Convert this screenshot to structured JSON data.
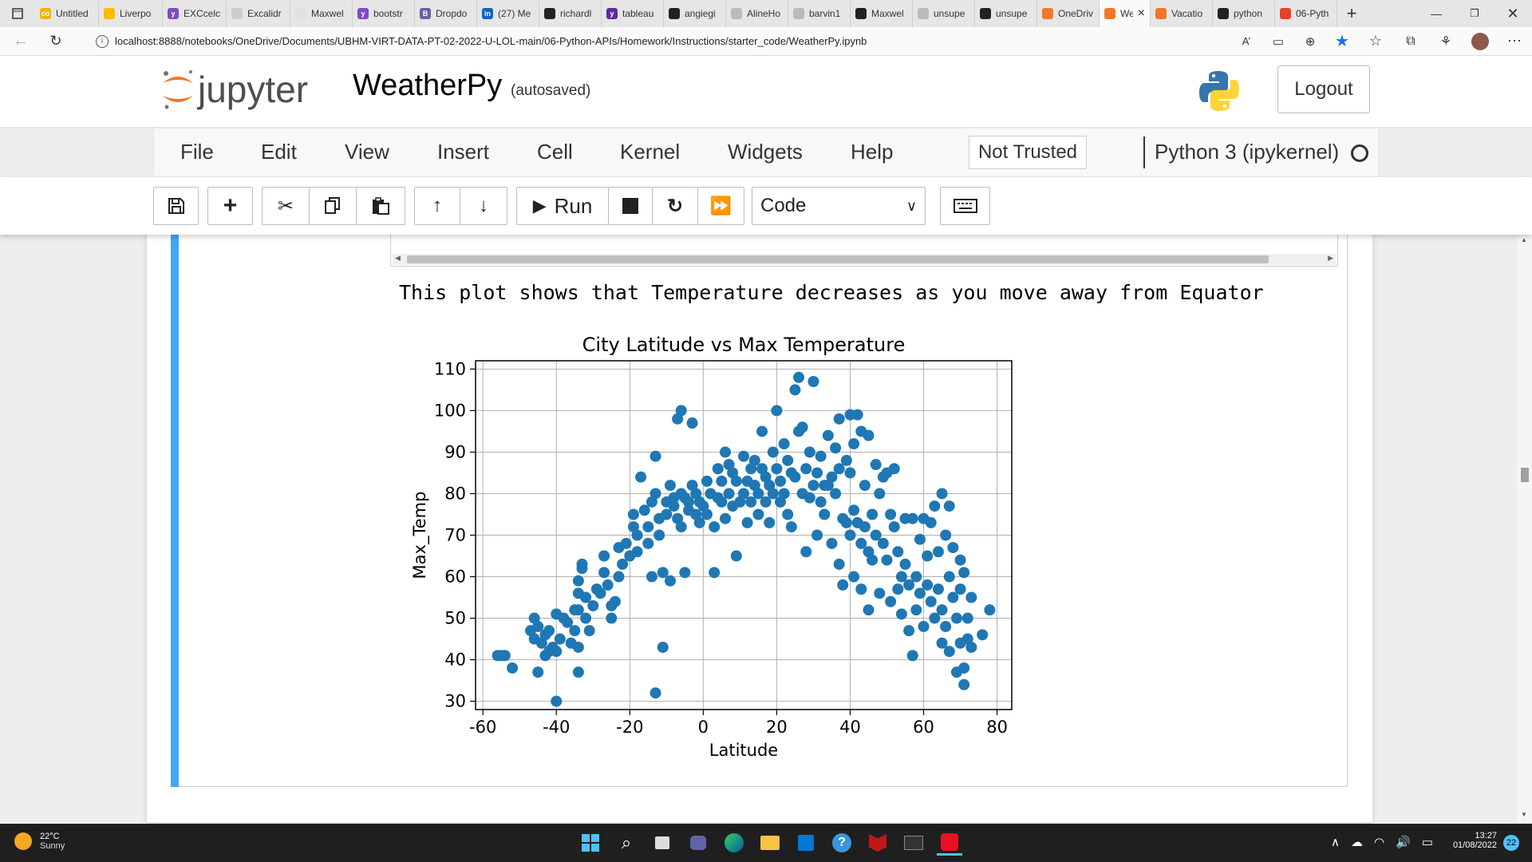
{
  "browser": {
    "tabs": [
      {
        "label": "Untitled",
        "color": "#f4b400",
        "glyph": "co"
      },
      {
        "label": "Liverpo",
        "color": "#ffb900",
        "glyph": ""
      },
      {
        "label": "EXCcelc",
        "color": "#7b4bc4",
        "glyph": "y"
      },
      {
        "label": "Excalidr",
        "color": "#cccccc",
        "glyph": ""
      },
      {
        "label": "Maxwel",
        "color": "#e0e0e0",
        "glyph": ""
      },
      {
        "label": "bootstr",
        "color": "#7b4bc4",
        "glyph": "y"
      },
      {
        "label": "Dropdo",
        "color": "#6b5fa5",
        "glyph": "B"
      },
      {
        "label": "(27) Me",
        "color": "#0a66c2",
        "glyph": "in"
      },
      {
        "label": "richardl",
        "color": "#222222",
        "glyph": ""
      },
      {
        "label": "tableau",
        "color": "#5a2aa0",
        "glyph": "y"
      },
      {
        "label": "angiegi",
        "color": "#222222",
        "glyph": ""
      },
      {
        "label": "AlineHo",
        "color": "#bbbbbb",
        "glyph": ""
      },
      {
        "label": "barvin1",
        "color": "#bbbbbb",
        "glyph": ""
      },
      {
        "label": "Maxwel",
        "color": "#222222",
        "glyph": ""
      },
      {
        "label": "unsupe",
        "color": "#bbbbbb",
        "glyph": ""
      },
      {
        "label": "unsupe",
        "color": "#222222",
        "glyph": ""
      },
      {
        "label": "OneDriv",
        "color": "#f37726",
        "glyph": ""
      },
      {
        "label": "We",
        "color": "#f37726",
        "glyph": "",
        "active": true
      },
      {
        "label": "Vacatio",
        "color": "#f37726",
        "glyph": ""
      },
      {
        "label": "python",
        "color": "#222222",
        "glyph": ""
      },
      {
        "label": "06-Pyth",
        "color": "#e24329",
        "glyph": ""
      }
    ],
    "close_tab": "×",
    "new_tab": "+",
    "url": "localhost:8888/notebooks/OneDrive/Documents/UBHM-VIRT-DATA-PT-02-2022-U-LOL-main/06-Python-APIs/Homework/Instructions/starter_code/WeatherPy.ipynb"
  },
  "jupyter": {
    "logo_text": "jupyter",
    "notebook_name": "WeatherPy",
    "save_status": "(autosaved)",
    "logout_label": "Logout",
    "menus": [
      "File",
      "Edit",
      "View",
      "Insert",
      "Cell",
      "Kernel",
      "Widgets",
      "Help"
    ],
    "trust_label": "Not Trusted",
    "kernel_name": "Python 3 (ipykernel)",
    "run_label": "Run",
    "cell_type": "Code"
  },
  "cell": {
    "output_text": "This plot shows that Temperature decreases as you move away from Equator"
  },
  "chart_data": {
    "type": "scatter",
    "title": "City Latitude vs Max Temperature",
    "xlabel": "Latitude",
    "ylabel": "Max_Temp",
    "xlim": [
      -62,
      84
    ],
    "ylim": [
      28,
      112
    ],
    "xticks": [
      -60,
      -40,
      -20,
      0,
      20,
      40,
      60,
      80
    ],
    "yticks": [
      30,
      40,
      50,
      60,
      70,
      80,
      90,
      100,
      110
    ],
    "grid": true,
    "color": "#1f77b4",
    "points": [
      [
        -56,
        41
      ],
      [
        -55,
        41
      ],
      [
        -54,
        41
      ],
      [
        -52,
        38
      ],
      [
        -47,
        47
      ],
      [
        -46,
        45
      ],
      [
        -46,
        50
      ],
      [
        -45,
        37
      ],
      [
        -45,
        48
      ],
      [
        -44,
        44
      ],
      [
        -43,
        41
      ],
      [
        -43,
        46
      ],
      [
        -42,
        42
      ],
      [
        -42,
        47
      ],
      [
        -41,
        43
      ],
      [
        -40,
        51
      ],
      [
        -40,
        30
      ],
      [
        -40,
        42
      ],
      [
        -39,
        45
      ],
      [
        -38,
        50
      ],
      [
        -37,
        49
      ],
      [
        -36,
        44
      ],
      [
        -35,
        47
      ],
      [
        -35,
        52
      ],
      [
        -34,
        37
      ],
      [
        -34,
        43
      ],
      [
        -34,
        52
      ],
      [
        -34,
        56
      ],
      [
        -34,
        59
      ],
      [
        -33,
        62
      ],
      [
        -33,
        63
      ],
      [
        -32,
        50
      ],
      [
        -32,
        55
      ],
      [
        -31,
        47
      ],
      [
        -30,
        53
      ],
      [
        -29,
        57
      ],
      [
        -28,
        56
      ],
      [
        -27,
        65
      ],
      [
        -27,
        61
      ],
      [
        -26,
        58
      ],
      [
        -25,
        53
      ],
      [
        -25,
        50
      ],
      [
        -24,
        54
      ],
      [
        -23,
        60
      ],
      [
        -23,
        67
      ],
      [
        -22,
        63
      ],
      [
        -21,
        68
      ],
      [
        -20,
        65
      ],
      [
        -19,
        72
      ],
      [
        -19,
        75
      ],
      [
        -18,
        66
      ],
      [
        -18,
        70
      ],
      [
        -17,
        84
      ],
      [
        -16,
        76
      ],
      [
        -15,
        72
      ],
      [
        -15,
        68
      ],
      [
        -14,
        60
      ],
      [
        -14,
        78
      ],
      [
        -13,
        89
      ],
      [
        -13,
        80
      ],
      [
        -13,
        32
      ],
      [
        -12,
        74
      ],
      [
        -12,
        70
      ],
      [
        -11,
        43
      ],
      [
        -11,
        61
      ],
      [
        -10,
        78
      ],
      [
        -10,
        75
      ],
      [
        -9,
        82
      ],
      [
        -9,
        59
      ],
      [
        -8,
        79
      ],
      [
        -8,
        77
      ],
      [
        -7,
        74
      ],
      [
        -7,
        98
      ],
      [
        -6,
        100
      ],
      [
        -6,
        72
      ],
      [
        -6,
        80
      ],
      [
        -5,
        61
      ],
      [
        -5,
        79
      ],
      [
        -4,
        78
      ],
      [
        -4,
        76
      ],
      [
        -3,
        97
      ],
      [
        -3,
        82
      ],
      [
        -2,
        75
      ],
      [
        -2,
        80
      ],
      [
        -1,
        73
      ],
      [
        -1,
        78
      ],
      [
        0,
        77
      ],
      [
        1,
        83
      ],
      [
        1,
        75
      ],
      [
        2,
        80
      ],
      [
        3,
        72
      ],
      [
        3,
        61
      ],
      [
        4,
        86
      ],
      [
        4,
        79
      ],
      [
        5,
        83
      ],
      [
        5,
        78
      ],
      [
        6,
        90
      ],
      [
        6,
        74
      ],
      [
        7,
        87
      ],
      [
        7,
        80
      ],
      [
        8,
        85
      ],
      [
        8,
        77
      ],
      [
        9,
        83
      ],
      [
        9,
        65
      ],
      [
        10,
        78
      ],
      [
        11,
        89
      ],
      [
        11,
        80
      ],
      [
        12,
        83
      ],
      [
        12,
        73
      ],
      [
        13,
        86
      ],
      [
        13,
        78
      ],
      [
        14,
        88
      ],
      [
        14,
        82
      ],
      [
        15,
        80
      ],
      [
        15,
        75
      ],
      [
        16,
        95
      ],
      [
        16,
        86
      ],
      [
        17,
        84
      ],
      [
        17,
        78
      ],
      [
        18,
        82
      ],
      [
        18,
        73
      ],
      [
        19,
        80
      ],
      [
        19,
        90
      ],
      [
        20,
        100
      ],
      [
        20,
        86
      ],
      [
        21,
        83
      ],
      [
        21,
        78
      ],
      [
        22,
        92
      ],
      [
        22,
        80
      ],
      [
        23,
        88
      ],
      [
        23,
        75
      ],
      [
        24,
        85
      ],
      [
        24,
        72
      ],
      [
        25,
        105
      ],
      [
        25,
        84
      ],
      [
        26,
        108
      ],
      [
        26,
        95
      ],
      [
        27,
        96
      ],
      [
        27,
        80
      ],
      [
        28,
        86
      ],
      [
        28,
        66
      ],
      [
        29,
        90
      ],
      [
        29,
        79
      ],
      [
        30,
        107
      ],
      [
        30,
        82
      ],
      [
        31,
        85
      ],
      [
        31,
        70
      ],
      [
        32,
        78
      ],
      [
        32,
        89
      ],
      [
        33,
        82
      ],
      [
        33,
        75
      ],
      [
        34,
        94
      ],
      [
        34,
        82
      ],
      [
        35,
        84
      ],
      [
        35,
        68
      ],
      [
        36,
        91
      ],
      [
        36,
        80
      ],
      [
        37,
        98
      ],
      [
        37,
        86
      ],
      [
        37,
        63
      ],
      [
        38,
        74
      ],
      [
        38,
        58
      ],
      [
        39,
        88
      ],
      [
        39,
        73
      ],
      [
        40,
        85
      ],
      [
        40,
        99
      ],
      [
        40,
        70
      ],
      [
        41,
        92
      ],
      [
        41,
        76
      ],
      [
        41,
        60
      ],
      [
        42,
        99
      ],
      [
        42,
        73
      ],
      [
        43,
        68
      ],
      [
        43,
        95
      ],
      [
        43,
        57
      ],
      [
        44,
        82
      ],
      [
        44,
        72
      ],
      [
        45,
        66
      ],
      [
        45,
        94
      ],
      [
        45,
        52
      ],
      [
        46,
        75
      ],
      [
        46,
        64
      ],
      [
        47,
        87
      ],
      [
        47,
        70
      ],
      [
        48,
        80
      ],
      [
        48,
        56
      ],
      [
        49,
        84
      ],
      [
        49,
        68
      ],
      [
        50,
        85
      ],
      [
        50,
        64
      ],
      [
        51,
        75
      ],
      [
        51,
        54
      ],
      [
        52,
        72
      ],
      [
        52,
        86
      ],
      [
        53,
        66
      ],
      [
        53,
        57
      ],
      [
        54,
        60
      ],
      [
        54,
        51
      ],
      [
        55,
        74
      ],
      [
        55,
        63
      ],
      [
        56,
        47
      ],
      [
        56,
        58
      ],
      [
        57,
        74
      ],
      [
        57,
        41
      ],
      [
        58,
        60
      ],
      [
        58,
        52
      ],
      [
        59,
        69
      ],
      [
        59,
        56
      ],
      [
        60,
        74
      ],
      [
        60,
        48
      ],
      [
        61,
        65
      ],
      [
        61,
        58
      ],
      [
        62,
        73
      ],
      [
        62,
        54
      ],
      [
        63,
        77
      ],
      [
        63,
        50
      ],
      [
        64,
        66
      ],
      [
        64,
        57
      ],
      [
        65,
        80
      ],
      [
        65,
        44
      ],
      [
        65,
        52
      ],
      [
        66,
        70
      ],
      [
        66,
        48
      ],
      [
        67,
        77
      ],
      [
        67,
        60
      ],
      [
        67,
        42
      ],
      [
        68,
        55
      ],
      [
        68,
        67
      ],
      [
        69,
        50
      ],
      [
        69,
        37
      ],
      [
        70,
        64
      ],
      [
        70,
        57
      ],
      [
        70,
        44
      ],
      [
        71,
        61
      ],
      [
        71,
        38
      ],
      [
        71,
        34
      ],
      [
        72,
        50
      ],
      [
        72,
        45
      ],
      [
        73,
        43
      ],
      [
        73,
        55
      ],
      [
        76,
        46
      ],
      [
        78,
        52
      ]
    ]
  },
  "taskbar": {
    "weather_temp": "22°C",
    "weather_desc": "Sunny",
    "time": "13:27",
    "date": "01/08/2022",
    "notifications": "22"
  }
}
